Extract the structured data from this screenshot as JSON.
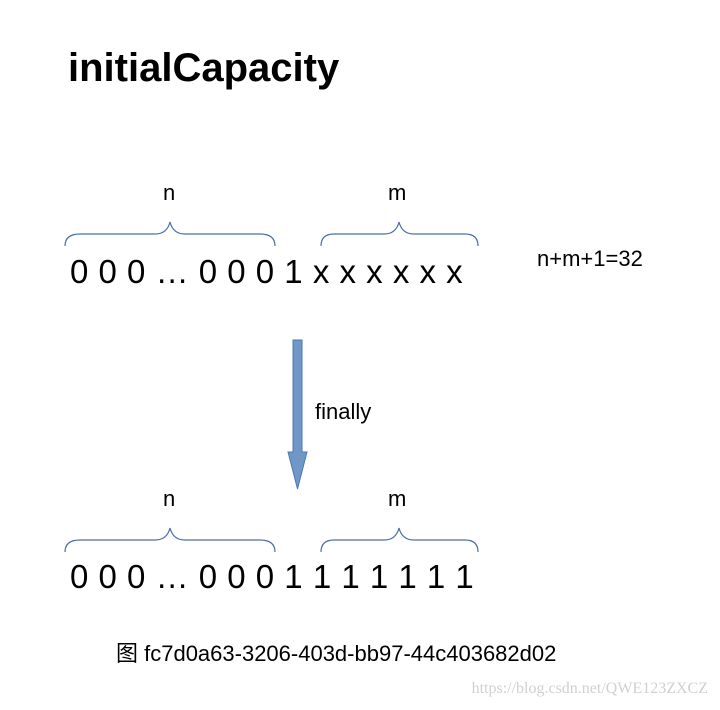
{
  "title": "initialCapacity",
  "top": {
    "n_label": "n",
    "m_label": "m",
    "bits": "0 0 0 … 0 0 0 1 x x x x x x"
  },
  "equation": "n+m+1=32",
  "arrow_label": "finally",
  "bottom": {
    "n_label": "n",
    "m_label": "m",
    "bits": "0 0 0 … 0 0 0 1 1 1 1 1 1 1"
  },
  "caption": "图  fc7d0a63-3206-403d-bb97-44c403682d02",
  "watermark": "https://blog.csdn.net/QWE123ZXCZ",
  "colors": {
    "brace": "#4a6fa5",
    "arrow_fill": "#6f97c8",
    "arrow_stroke": "#4f78ad"
  }
}
